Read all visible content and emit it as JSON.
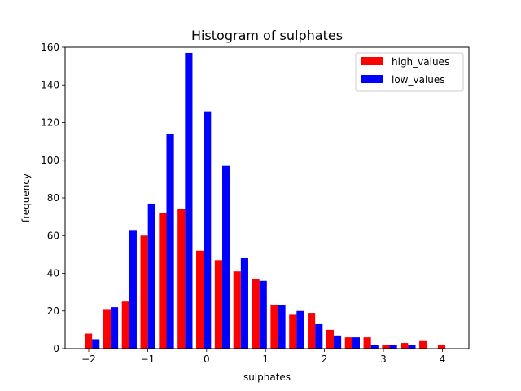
{
  "chart_data": {
    "type": "bar",
    "title": "Histogram of sulphates",
    "xlabel": "sulphates",
    "ylabel": "frequency",
    "xlim": [
      -2.4,
      4.45
    ],
    "ylim": [
      0,
      160
    ],
    "xticks": [
      -2,
      -1,
      0,
      1,
      2,
      3,
      4
    ],
    "xtick_labels": [
      "−2",
      "−1",
      "0",
      "1",
      "2",
      "3",
      "4"
    ],
    "yticks": [
      0,
      20,
      40,
      60,
      80,
      100,
      120,
      140,
      160
    ],
    "ytick_labels": [
      "0",
      "20",
      "40",
      "60",
      "80",
      "100",
      "120",
      "140",
      "160"
    ],
    "bin_width": 0.3154,
    "bin_starts": [
      -2.1,
      -1.7846,
      -1.4692,
      -1.1538,
      -0.8385,
      -0.5231,
      -0.2077,
      0.1077,
      0.4231,
      0.7385,
      1.0538,
      1.3692,
      1.6846,
      2.0,
      2.3154,
      2.6308,
      2.9462,
      3.2615,
      3.5769,
      3.8923
    ],
    "legend": {
      "position": "upper right"
    },
    "series": [
      {
        "name": "high_values",
        "color": "#ff0000",
        "values": [
          8,
          21,
          25,
          60,
          72,
          74,
          52,
          47,
          41,
          37,
          23,
          18,
          19,
          10,
          6,
          6,
          2,
          3,
          4,
          2
        ]
      },
      {
        "name": "low_values",
        "color": "#0000ff",
        "values": [
          5,
          22,
          63,
          77,
          114,
          157,
          126,
          97,
          48,
          36,
          23,
          20,
          13,
          7,
          6,
          2,
          2,
          2,
          0,
          0
        ]
      }
    ]
  }
}
